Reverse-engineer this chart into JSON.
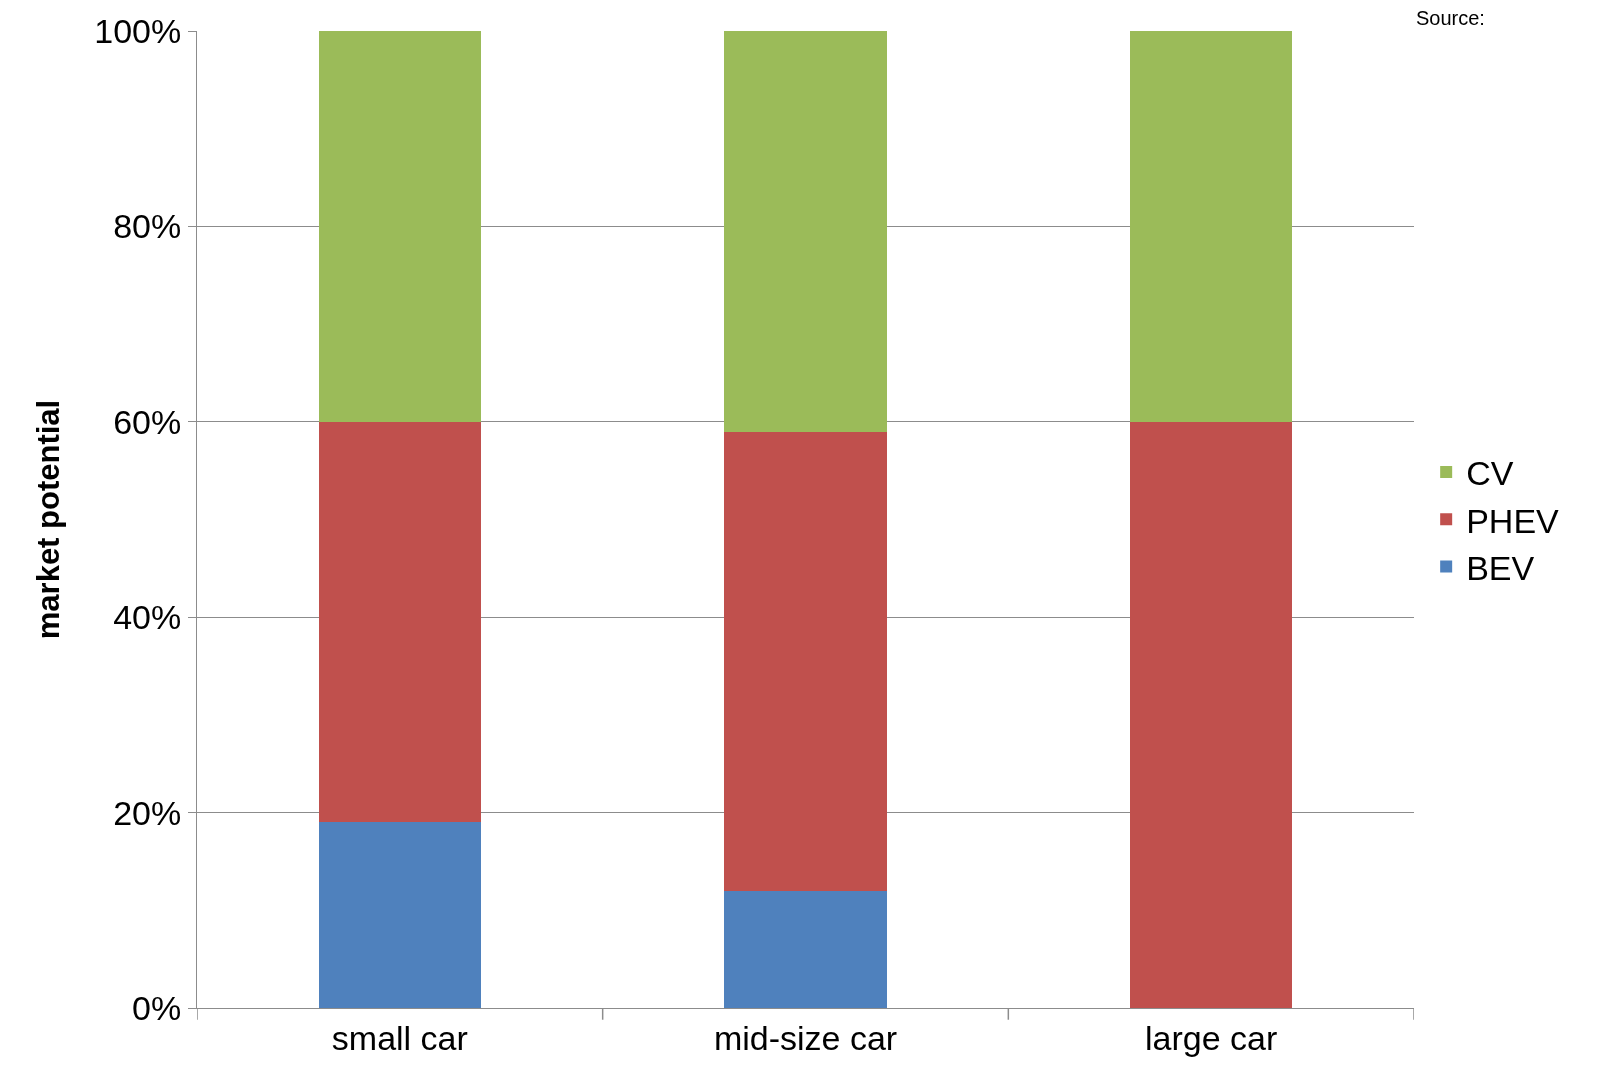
{
  "chart_data": {
    "type": "bar",
    "stacked": true,
    "ylabel": "market potential",
    "categories": [
      "small car",
      "mid-size car",
      "large car"
    ],
    "series": [
      {
        "name": "BEV",
        "color": "#4f81bd",
        "values": [
          19,
          12,
          0
        ]
      },
      {
        "name": "PHEV",
        "color": "#c0504d",
        "values": [
          41,
          47,
          60
        ]
      },
      {
        "name": "CV",
        "color": "#9bbb59",
        "values": [
          40,
          41,
          40
        ]
      }
    ],
    "ylim": [
      0,
      100
    ],
    "yticks": [
      {
        "value": 0,
        "label": "0%"
      },
      {
        "value": 20,
        "label": "20%"
      },
      {
        "value": 40,
        "label": "40%"
      },
      {
        "value": 60,
        "label": "60%"
      },
      {
        "value": 80,
        "label": "80%"
      },
      {
        "value": 100,
        "label": "100%"
      }
    ],
    "grid": "y",
    "legend": "right",
    "annotations": [
      "Source:"
    ]
  }
}
